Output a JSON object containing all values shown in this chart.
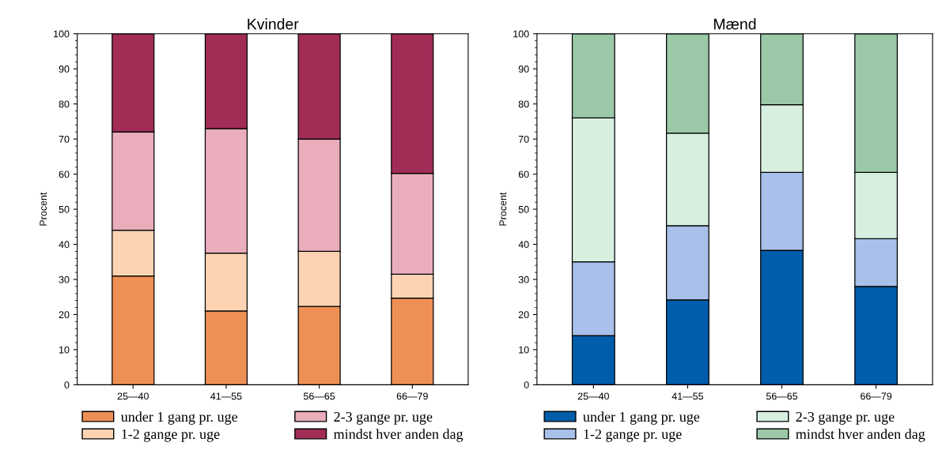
{
  "chart_data": [
    {
      "type": "bar",
      "title": "Kvinder",
      "ylabel": "Procent",
      "stacked": true,
      "legend": "bottom",
      "grid": false,
      "categories": [
        "25—40",
        "41—55",
        "56—65",
        "66—79"
      ],
      "ylim": [
        0,
        100
      ],
      "yticks": [
        0,
        10,
        20,
        30,
        40,
        50,
        60,
        70,
        80,
        90,
        100
      ],
      "series": [
        {
          "name": "under 1 gang pr. uge",
          "color": "#ee9055",
          "values": [
            31,
            21,
            22.3,
            24.7
          ]
        },
        {
          "name": "1-2 gange pr. uge",
          "color": "#fdd3b3",
          "values": [
            13,
            16.5,
            15.7,
            6.8
          ]
        },
        {
          "name": "2-3 gange pr. uge",
          "color": "#e9adbb",
          "values": [
            28,
            35.5,
            32,
            28.7
          ]
        },
        {
          "name": "mindst hver anden dag",
          "color": "#a12d57",
          "values": [
            28,
            27,
            30,
            39.8
          ]
        }
      ]
    },
    {
      "type": "bar",
      "title": "Mænd",
      "ylabel": "Procent",
      "stacked": true,
      "legend": "bottom",
      "grid": false,
      "categories": [
        "25—40",
        "41—55",
        "56—65",
        "66—79"
      ],
      "ylim": [
        0,
        100
      ],
      "yticks": [
        0,
        10,
        20,
        30,
        40,
        50,
        60,
        70,
        80,
        90,
        100
      ],
      "series": [
        {
          "name": "under 1 gang pr. uge",
          "color": "#005dab",
          "values": [
            14,
            24.2,
            38.3,
            28
          ]
        },
        {
          "name": "1-2 gange pr. uge",
          "color": "#a8c0ea",
          "values": [
            21,
            21.1,
            22.2,
            13.6
          ]
        },
        {
          "name": "2-3 gange pr. uge",
          "color": "#d7efdf",
          "values": [
            41,
            26.4,
            19.3,
            18.9
          ]
        },
        {
          "name": "mindst hver anden dag",
          "color": "#9bc9a8",
          "values": [
            24,
            28.3,
            20.2,
            39.5
          ]
        }
      ]
    }
  ]
}
